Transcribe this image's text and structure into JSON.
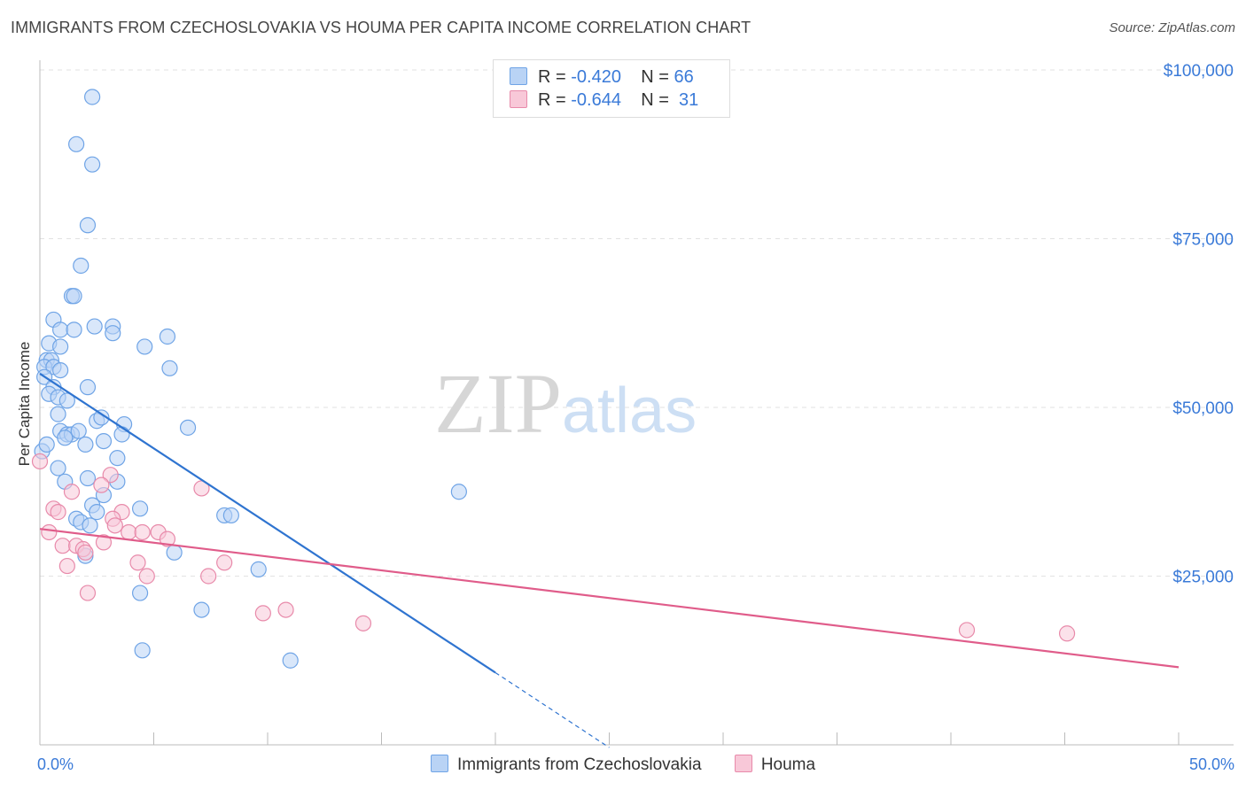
{
  "chart_data": {
    "type": "scatter",
    "title": "IMMIGRANTS FROM CZECHOSLOVAKIA VS HOUMA PER CAPITA INCOME CORRELATION CHART",
    "source": "Source: ZipAtlas.com",
    "xlabel": "",
    "ylabel": "Per Capita Income",
    "xlim": [
      0,
      50
    ],
    "ylim": [
      0,
      105000
    ],
    "x_tick_labels": [
      "0.0%",
      "50.0%"
    ],
    "y_ticks": [
      25000,
      50000,
      75000,
      100000
    ],
    "y_tick_labels": [
      "$25,000",
      "$50,000",
      "$75,000",
      "$100,000"
    ],
    "watermark": "ZIPatlas",
    "legend_stats": [
      {
        "r_label": "R =",
        "r_value": "-0.420",
        "n_label": "N =",
        "n_value": "66"
      },
      {
        "r_label": "R =",
        "r_value": "-0.644",
        "n_label": "N =",
        "n_value": "31"
      }
    ],
    "series": [
      {
        "name": "Immigrants from Czechoslovakia",
        "color": "#6fa4e6",
        "fill": "#b9d3f5",
        "trend": {
          "x0": 0,
          "y0": 55000,
          "x1": 20,
          "y1": 10700,
          "dash_to_x": 25,
          "dash_to_y": -400,
          "color": "#2f74d0"
        },
        "points": [
          [
            2.3,
            96000
          ],
          [
            1.6,
            89000
          ],
          [
            2.3,
            86000
          ],
          [
            2.1,
            77000
          ],
          [
            1.8,
            71000
          ],
          [
            1.4,
            66500
          ],
          [
            1.5,
            66500
          ],
          [
            0.6,
            63000
          ],
          [
            0.9,
            61500
          ],
          [
            1.5,
            61500
          ],
          [
            2.4,
            62000
          ],
          [
            3.2,
            62000
          ],
          [
            3.2,
            61000
          ],
          [
            5.6,
            60500
          ],
          [
            0.4,
            59500
          ],
          [
            0.9,
            59000
          ],
          [
            4.6,
            59000
          ],
          [
            0.3,
            57000
          ],
          [
            0.5,
            57000
          ],
          [
            0.2,
            56000
          ],
          [
            0.6,
            56000
          ],
          [
            0.9,
            55500
          ],
          [
            5.7,
            55800
          ],
          [
            0.2,
            54500
          ],
          [
            0.6,
            53000
          ],
          [
            2.1,
            53000
          ],
          [
            0.4,
            52000
          ],
          [
            0.8,
            51500
          ],
          [
            1.2,
            51000
          ],
          [
            0.8,
            49000
          ],
          [
            2.5,
            48000
          ],
          [
            3.7,
            47500
          ],
          [
            6.5,
            47000
          ],
          [
            0.9,
            46500
          ],
          [
            1.2,
            46000
          ],
          [
            1.4,
            46000
          ],
          [
            1.7,
            46500
          ],
          [
            1.1,
            45500
          ],
          [
            2.8,
            45000
          ],
          [
            2.0,
            44500
          ],
          [
            0.1,
            43500
          ],
          [
            3.4,
            42500
          ],
          [
            0.8,
            41000
          ],
          [
            1.1,
            39000
          ],
          [
            2.1,
            39500
          ],
          [
            3.4,
            39000
          ],
          [
            2.8,
            37000
          ],
          [
            18.4,
            37500
          ],
          [
            2.3,
            35500
          ],
          [
            2.5,
            34500
          ],
          [
            4.4,
            35000
          ],
          [
            8.1,
            34000
          ],
          [
            8.4,
            34000
          ],
          [
            1.6,
            33500
          ],
          [
            1.8,
            33000
          ],
          [
            2.2,
            32500
          ],
          [
            5.9,
            28500
          ],
          [
            2.0,
            28000
          ],
          [
            9.6,
            26000
          ],
          [
            4.4,
            22500
          ],
          [
            7.1,
            20000
          ],
          [
            4.5,
            14000
          ],
          [
            11.0,
            12500
          ],
          [
            0.3,
            44500
          ],
          [
            3.6,
            46000
          ],
          [
            2.7,
            48500
          ]
        ]
      },
      {
        "name": "Houma",
        "color": "#e88aaa",
        "fill": "#f8c8d8",
        "trend": {
          "x0": 0,
          "y0": 32000,
          "x1": 50,
          "y1": 11500,
          "color": "#e05c8a"
        },
        "points": [
          [
            0.0,
            42000
          ],
          [
            3.1,
            40000
          ],
          [
            2.7,
            38500
          ],
          [
            7.1,
            38000
          ],
          [
            1.4,
            37500
          ],
          [
            0.6,
            35000
          ],
          [
            0.8,
            34500
          ],
          [
            3.6,
            34500
          ],
          [
            3.2,
            33500
          ],
          [
            3.3,
            32500
          ],
          [
            0.4,
            31500
          ],
          [
            3.9,
            31500
          ],
          [
            4.5,
            31500
          ],
          [
            5.2,
            31500
          ],
          [
            5.6,
            30500
          ],
          [
            2.8,
            30000
          ],
          [
            1.0,
            29500
          ],
          [
            1.6,
            29500
          ],
          [
            1.9,
            29000
          ],
          [
            2.0,
            28500
          ],
          [
            4.3,
            27000
          ],
          [
            8.1,
            27000
          ],
          [
            1.2,
            26500
          ],
          [
            4.7,
            25000
          ],
          [
            7.4,
            25000
          ],
          [
            2.1,
            22500
          ],
          [
            10.8,
            20000
          ],
          [
            9.8,
            19500
          ],
          [
            14.2,
            18000
          ],
          [
            40.7,
            17000
          ],
          [
            45.1,
            16500
          ]
        ]
      }
    ]
  }
}
